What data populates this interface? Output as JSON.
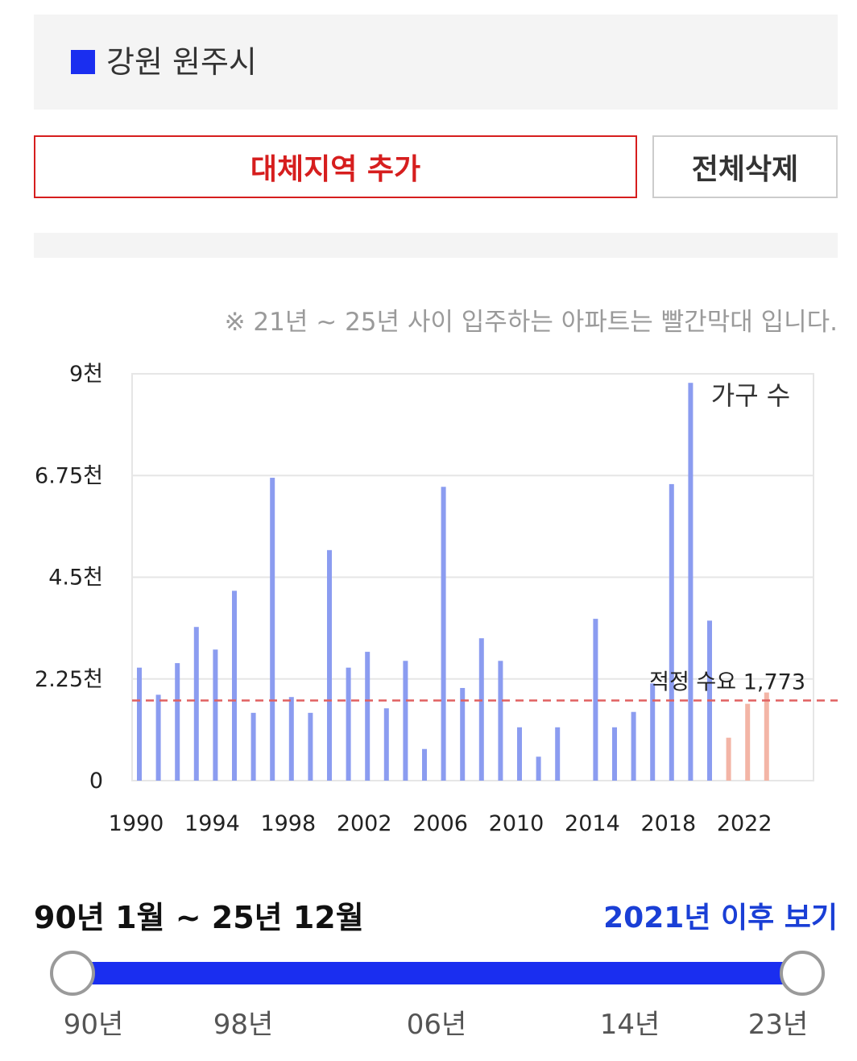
{
  "region": {
    "name": "강원 원주시",
    "swatch_color": "#1a2ef0"
  },
  "buttons": {
    "add_region": "대체지역 추가",
    "delete_all": "전체삭제"
  },
  "notice": "※ 21년 ~ 25년 사이 입주하는 아파트는 빨간막대 입니다.",
  "chart_data": {
    "type": "bar",
    "legend": "가구 수",
    "x_tick_labels": [
      "1990",
      "1994",
      "1998",
      "2002",
      "2006",
      "2010",
      "2014",
      "2018",
      "2022"
    ],
    "y_ticks": [
      0,
      2250,
      4500,
      6750,
      9000
    ],
    "y_tick_labels": [
      "0",
      "2.25천",
      "4.5천",
      "6.75천",
      "9천"
    ],
    "ylim": [
      0,
      9000
    ],
    "grid": true,
    "bar_color": "#8b9cf0",
    "highlight_color": "#f3b5a6",
    "reference_line": {
      "value": 1773,
      "label": "적정 수요 1,773",
      "color": "#e06060"
    },
    "series": [
      {
        "years": [
          1990,
          1991,
          1992,
          1993,
          1994,
          1995,
          1996,
          1997,
          1998,
          1999,
          2000,
          2001,
          2002,
          2003,
          2004,
          2005,
          2006,
          2007,
          2008,
          2009,
          2010,
          2011,
          2012,
          2013,
          2014,
          2015,
          2016,
          2017,
          2018,
          2019,
          2020
        ],
        "values": [
          2500,
          1900,
          2600,
          3400,
          2900,
          4200,
          1500,
          6700,
          1850,
          1500,
          5100,
          2500,
          2850,
          1600,
          2650,
          700,
          6500,
          2050,
          3150,
          2650,
          1180,
          530,
          1180,
          0,
          3580,
          1180,
          1520,
          2150,
          6560,
          8800,
          3540
        ],
        "highlight": false
      },
      {
        "years": [
          2021,
          2022,
          2023
        ],
        "values": [
          950,
          1700,
          1950
        ],
        "highlight": true
      }
    ]
  },
  "range": {
    "title": "90년 1월 ~ 25년 12월",
    "link": "2021년 이후 보기",
    "slider_color": "#1a2ef0",
    "ticks": [
      "90년",
      "98년",
      "06년",
      "14년",
      "23년"
    ]
  }
}
